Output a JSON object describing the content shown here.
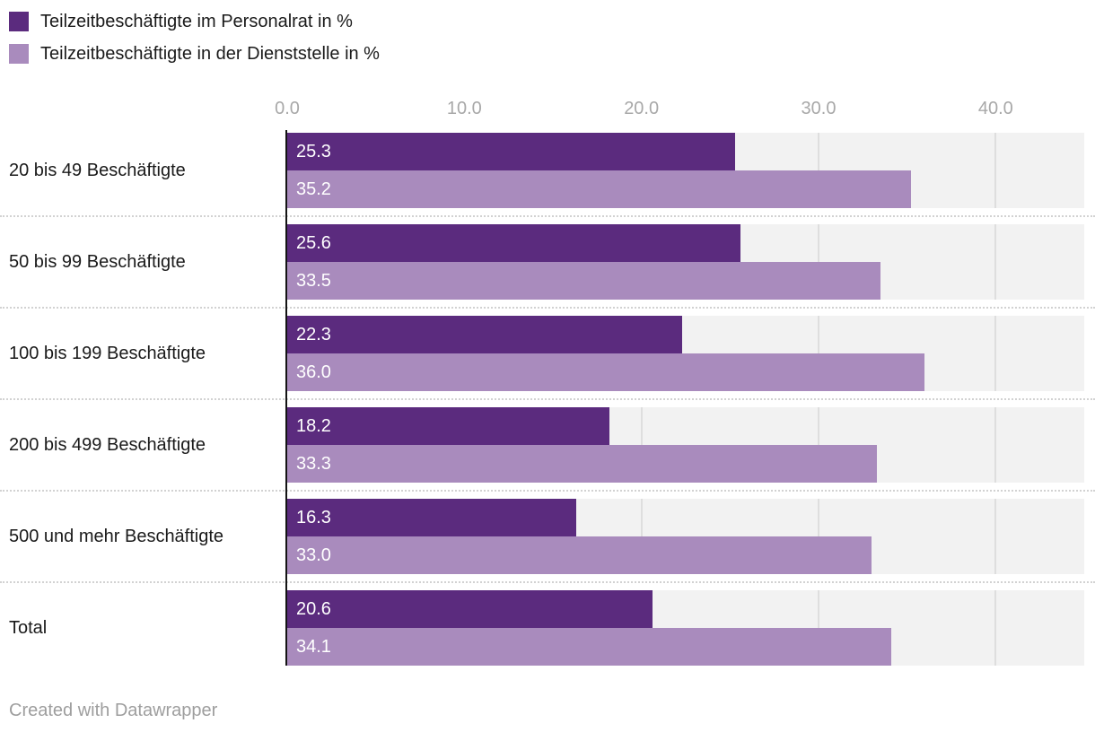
{
  "chart_data": {
    "type": "bar",
    "orientation": "horizontal",
    "title": "",
    "categories": [
      "20 bis 49 Beschäftigte",
      "50 bis 99 Beschäftigte",
      "100 bis 199 Beschäftigte",
      "200 bis 499 Beschäftigte",
      "500 und mehr Beschäftigte",
      "Total"
    ],
    "series": [
      {
        "name": "Teilzeitbeschäftigte im Personalrat in %",
        "color": "#5b2b7e",
        "values": [
          25.3,
          25.6,
          22.3,
          18.2,
          16.3,
          20.6
        ]
      },
      {
        "name": "Teilzeitbeschäftigte in der Dienststelle in %",
        "color": "#a98bbd",
        "values": [
          35.2,
          33.5,
          36.0,
          33.3,
          33.0,
          34.1
        ]
      }
    ],
    "x_axis": {
      "ticks": [
        0,
        10,
        20,
        30,
        40
      ],
      "tick_labels": [
        "0.0",
        "10.0",
        "20.0",
        "30.0",
        "40.0"
      ],
      "min": 0,
      "max": 45
    },
    "value_format_decimals": 1,
    "grid": true,
    "legend_position": "top-left",
    "row_background": "#f2f2f2"
  },
  "footer": {
    "credit": "Created with Datawrapper"
  }
}
